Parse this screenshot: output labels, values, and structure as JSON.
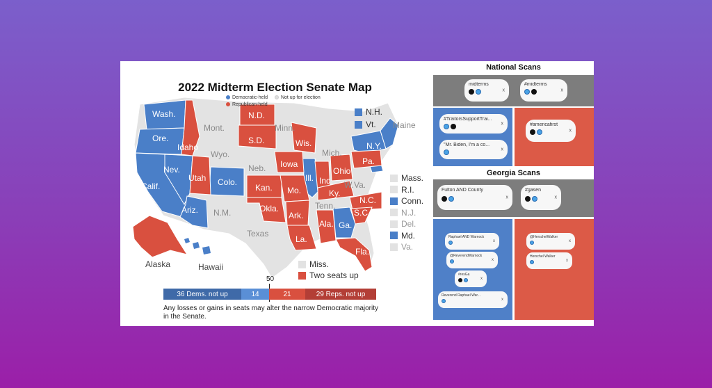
{
  "map": {
    "title": "2022 Midterm Election Senate Map",
    "legend": {
      "democratic": "Democratic-held",
      "republican": "Republican-held",
      "not_up": "Not up for election"
    },
    "states": {
      "wash": "Wash.",
      "ore": "Ore.",
      "calif": "Calif.",
      "nev": "Nev.",
      "idaho": "Idaho",
      "mont": "Mont.",
      "wyo": "Wyo.",
      "utah": "Utah",
      "colo": "Colo.",
      "ariz": "Ariz.",
      "nm": "N.M.",
      "nd": "N.D.",
      "sd": "S.D.",
      "neb": "Neb.",
      "kan": "Kan.",
      "okla": "Okla.",
      "texas": "Texas",
      "minn": "Minn.",
      "iowa": "Iowa",
      "mo": "Mo.",
      "ark": "Ark.",
      "la": "La.",
      "wis": "Wis.",
      "ill": "Ill.",
      "mich": "Mich.",
      "ind": "Ind.",
      "ohio": "Ohio",
      "ky": "Ky.",
      "tenn": "Tenn.",
      "ala": "Ala.",
      "ga": "Ga.",
      "fla": "Fla.",
      "sc": "S.C.",
      "nc": "N.C.",
      "wva": "W.Va.",
      "pa": "Pa.",
      "ny": "N.Y.",
      "maine": "Maine",
      "alaska": "Alaska",
      "hawaii": "Hawaii"
    },
    "ne_key": [
      "N.H.",
      "Vt."
    ],
    "side_key": [
      "Mass.",
      "R.I.",
      "Conn.",
      "N.J.",
      "Del.",
      "Md.",
      "Va."
    ],
    "bottom_key": {
      "miss": "Miss.",
      "two_seats": "Two seats up"
    },
    "seat_bar": {
      "dems_not_up": "36 Dems. not up",
      "dems_up": "14",
      "reps_up": "21",
      "reps_not_up": "29 Reps. not up",
      "majority": "50"
    },
    "caption": "Any losses or gains in seats may alter the narrow Democratic majority in the Senate.",
    "colors": {
      "democratic": "#4a7fc8",
      "republican": "#d9503f",
      "not_up": "#e2e2e2"
    }
  },
  "national": {
    "heading": "National Scans",
    "grey_chips": [
      "midterms",
      "#midterms"
    ],
    "blue_chips": [
      "#TraitorsSupportTrai...",
      "\"Mr. Biden, I'm a co..."
    ],
    "red_chips": [
      "#americafirst"
    ]
  },
  "georgia": {
    "heading": "Georgia Scans",
    "grey_chips": [
      "Fulton AND County",
      "#gasen"
    ],
    "blue_chips": [
      "Raphael AND Warnock",
      "@ReverendWarnock",
      "#resGa",
      "Reverend Raphael War..."
    ],
    "red_chips": [
      "@HerschelWalker",
      "Herschel Walker"
    ]
  },
  "chip_close": "x"
}
